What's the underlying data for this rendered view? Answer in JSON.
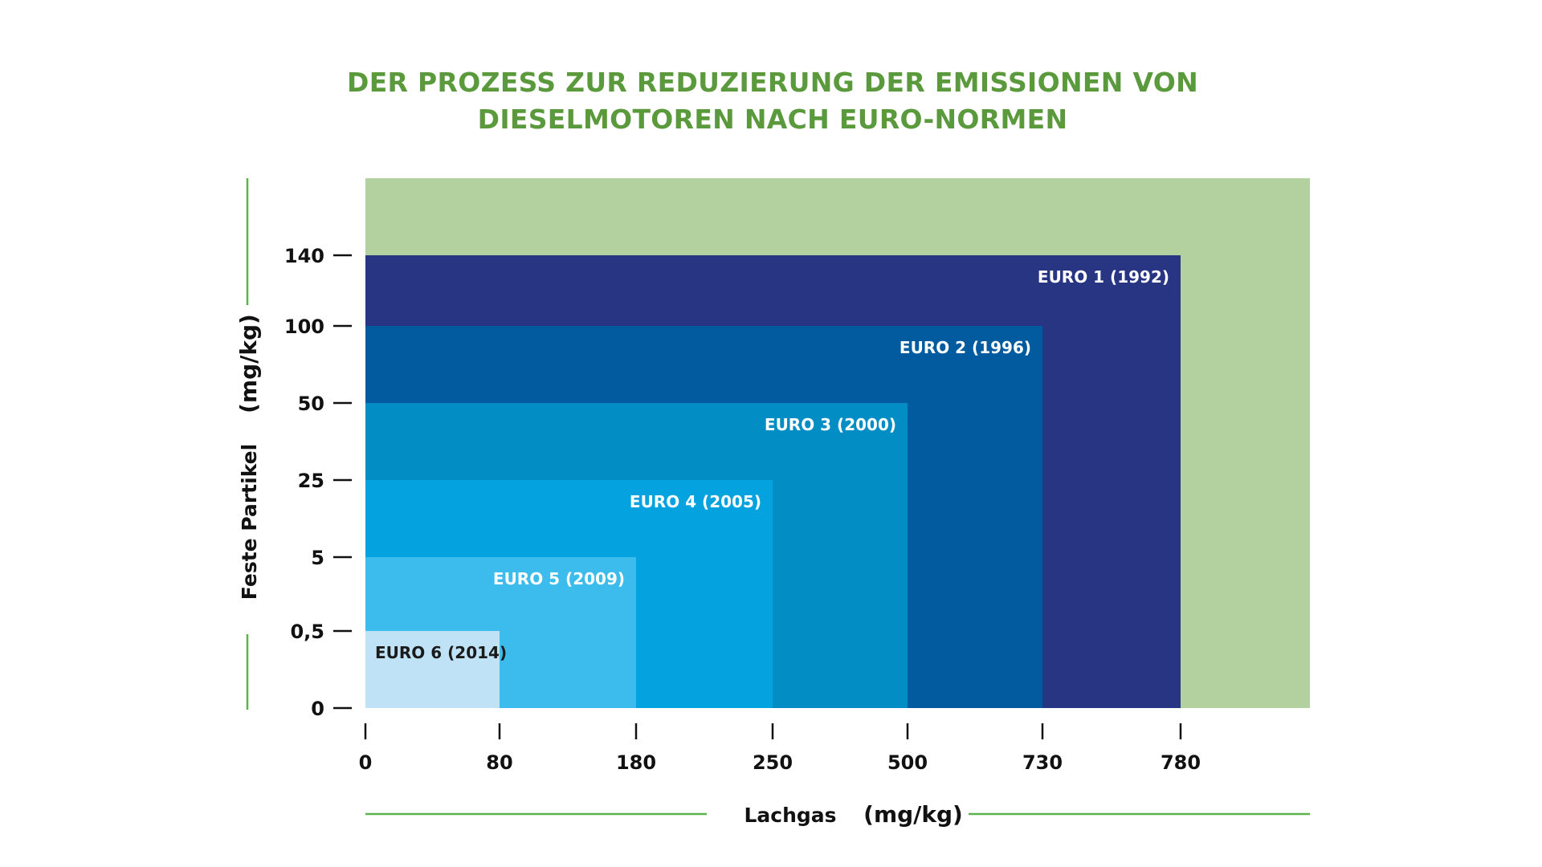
{
  "colors": {
    "title": "#5b9a3c",
    "background_band": "#b3d19e",
    "accent_line": "#5bb34a",
    "axis": "#111111",
    "label_light": "#ffffff",
    "label_dark": "#1a1a1a"
  },
  "chart_data": {
    "type": "nested-rectangles",
    "title_lines": [
      "DER PROZESS ZUR REDUZIERUNG DER EMISSIONEN VON",
      "DIESELMOTOREN NACH EURO-NORMEN"
    ],
    "xlabel": "Lachgas",
    "xunit": "(mg/kg)",
    "ylabel": "Feste Partikel",
    "yunit": "(mg/kg)",
    "x_ticks": [
      "0",
      "80",
      "180",
      "250",
      "500",
      "730",
      "780"
    ],
    "y_ticks": [
      "0",
      "0,5",
      "5",
      "25",
      "50",
      "100",
      "140"
    ],
    "series": [
      {
        "name": "EURO 1 (1992)",
        "x_limit": 780,
        "y_limit": 140,
        "color": "#283583"
      },
      {
        "name": "EURO 2 (1996)",
        "x_limit": 730,
        "y_limit": 100,
        "color": "#035b9f"
      },
      {
        "name": "EURO 3 (2000)",
        "x_limit": 500,
        "y_limit": 50,
        "color": "#028dc5"
      },
      {
        "name": "EURO 4 (2005)",
        "x_limit": 250,
        "y_limit": 25,
        "color": "#05a2e0"
      },
      {
        "name": "EURO 5 (2009)",
        "x_limit": 180,
        "y_limit": 5,
        "color": "#3bbcec"
      },
      {
        "name": "EURO 6 (2014)",
        "x_limit": 80,
        "y_limit": 0.5,
        "color": "#bfe2f6"
      }
    ]
  }
}
